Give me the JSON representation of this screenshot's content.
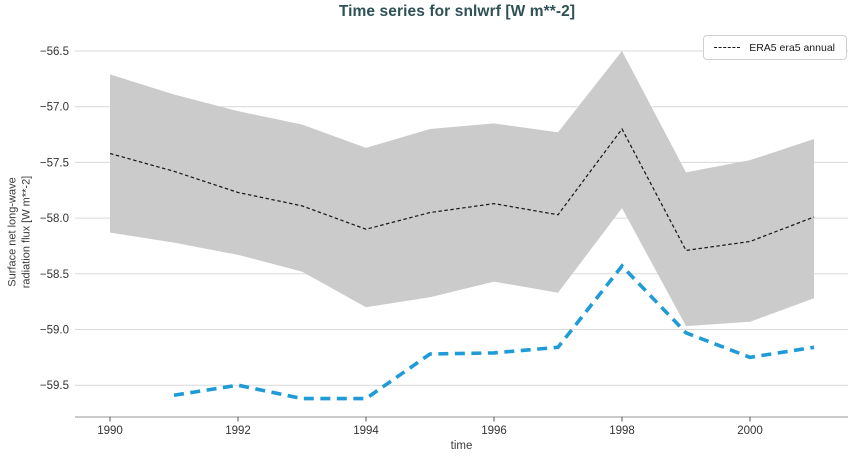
{
  "title": "Time series for snlwrf [W m**-2]",
  "legend": {
    "era5_label": "ERA5 era5 annual"
  },
  "colors": {
    "title": "#2e5156",
    "era5_line": "#1a1a1a",
    "uncertainty_band": "#cbcbcb",
    "annual_line_blue": "#1f9bd7",
    "gridline": "#d9d9d9",
    "axis_spine": "#b8b8b8",
    "tick_text": "#333333"
  },
  "chart_data": {
    "type": "line",
    "title": "Time series for snlwrf [W m**-2]",
    "xlabel": "time",
    "ylabel": "Surface net long-wave\nradiation flux [W m**-2]",
    "x_ticks": [
      1990,
      1992,
      1994,
      1996,
      1998,
      2000
    ],
    "x_tick_labels": [
      "1990",
      "1992",
      "1994",
      "1996",
      "1998",
      "2000"
    ],
    "y_ticks": [
      -56.5,
      -57.0,
      -57.5,
      -58.0,
      -58.5,
      -59.0,
      -59.5
    ],
    "y_tick_labels": [
      "−56.5",
      "−57.0",
      "−57.5",
      "−58.0",
      "−58.5",
      "−59.0",
      "−59.5"
    ],
    "xlim": [
      1989.45,
      2001.55
    ],
    "ylim": [
      -59.79,
      -56.4
    ],
    "grid": "horizontal",
    "legend_position": "top-right",
    "series": [
      {
        "name": "ERA5 era5 annual uncertainty band",
        "type": "area",
        "color": "#cbcbcb",
        "x": [
          1990,
          1991,
          1992,
          1993,
          1994,
          1995,
          1996,
          1997,
          1998,
          1999,
          2000,
          2001
        ],
        "upper": [
          -56.71,
          -56.89,
          -57.04,
          -57.16,
          -57.37,
          -57.2,
          -57.15,
          -57.23,
          -56.5,
          -57.59,
          -57.48,
          -57.29
        ],
        "lower": [
          -58.13,
          -58.22,
          -58.33,
          -58.48,
          -58.8,
          -58.71,
          -58.57,
          -58.67,
          -57.91,
          -58.97,
          -58.93,
          -58.72
        ]
      },
      {
        "name": "ERA5 era5 annual",
        "type": "line",
        "style": "dashed",
        "color": "#1a1a1a",
        "in_legend": true,
        "x": [
          1990,
          1991,
          1992,
          1993,
          1994,
          1995,
          1996,
          1997,
          1998,
          1999,
          2000,
          2001
        ],
        "values": [
          -57.42,
          -57.58,
          -57.77,
          -57.89,
          -58.1,
          -57.95,
          -57.87,
          -57.97,
          -57.2,
          -58.29,
          -58.21,
          -57.99
        ]
      },
      {
        "name": "unlabeled blue annual series",
        "type": "line",
        "style": "dashed",
        "color": "#1f9bd7",
        "in_legend": false,
        "x": [
          1991,
          1992,
          1993,
          1994,
          1995,
          1996,
          1997,
          1998,
          1999,
          2000,
          2001
        ],
        "values": [
          -59.59,
          -59.5,
          -59.62,
          -59.62,
          -59.22,
          -59.21,
          -59.16,
          -58.43,
          -59.03,
          -59.25,
          -59.16
        ]
      }
    ]
  }
}
